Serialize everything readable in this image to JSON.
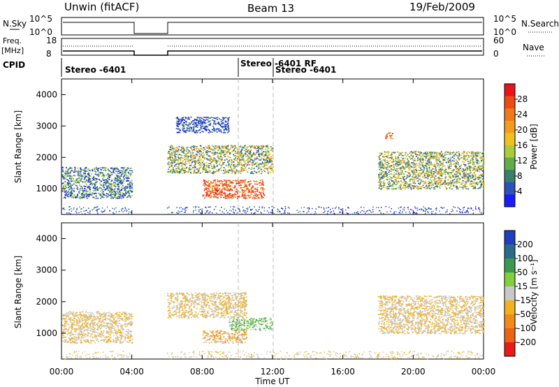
{
  "header": {
    "station": "Unwin (fitACF)",
    "beam": "Beam 13",
    "date": "19/Feb/2009"
  },
  "panels": {
    "nsky": {
      "label": "N.Sky",
      "left_ticks": [
        "10^5",
        "10^0"
      ],
      "right_ticks": [
        "10^5",
        "10^0"
      ],
      "right_label": "N.Search"
    },
    "freq": {
      "label": "Freq.",
      "unit": "[MHz]",
      "left_ticks": [
        "18",
        "8"
      ],
      "right_ticks": [
        "60",
        "0"
      ],
      "right_label": "Nave"
    },
    "cpid": {
      "label": "CPID",
      "segments": [
        "Stereo -6401",
        "Stereo -6401 RF",
        "Stereo -6401"
      ]
    }
  },
  "axes": {
    "ylabel": "Slant Range [km]",
    "yticks": [
      "1000",
      "2000",
      "3000",
      "4000"
    ],
    "xlabel": "Time UT",
    "xticks": [
      "00:00",
      "04:00",
      "08:00",
      "12:00",
      "16:00",
      "20:00",
      "00:00"
    ]
  },
  "colorbars": {
    "power": {
      "label": "Power [dB]",
      "ticks": [
        "4",
        "8",
        "12",
        "16",
        "20",
        "24",
        "28"
      ],
      "colors": [
        "#1a1aff",
        "#2b52b8",
        "#3a7f6a",
        "#62ad48",
        "#a8cc3a",
        "#f0c020",
        "#f59b1e",
        "#f07a1a",
        "#ee4a14",
        "#e8141a"
      ]
    },
    "velocity": {
      "label": "Velocity [m s⁻¹]",
      "ticks": [
        "200",
        "100",
        "50",
        "15",
        "-15",
        "-50",
        "-100",
        "-200"
      ],
      "colors": [
        "#1f3fbf",
        "#2b6a8a",
        "#3a9a50",
        "#7fd03a",
        "#c8c8c8",
        "#f2b21e",
        "#f08a18",
        "#ee6214",
        "#e81a1a"
      ]
    }
  },
  "chart_data": [
    {
      "type": "heatmap",
      "title": "Power",
      "xlabel": "Time UT",
      "ylabel": "Slant Range [km]",
      "xlim_hours": [
        0,
        24
      ],
      "ylim_km": [
        180,
        4500
      ],
      "regions": [
        {
          "t0": 0.0,
          "t1": 4.0,
          "r0": 700,
          "r1": 1700,
          "level": "low-mid"
        },
        {
          "t0": 6.0,
          "t1": 12.0,
          "r0": 1500,
          "r1": 2400,
          "level": "mid"
        },
        {
          "t0": 8.0,
          "t1": 11.5,
          "r0": 700,
          "r1": 1300,
          "level": "high"
        },
        {
          "t0": 6.5,
          "t1": 9.5,
          "r0": 2800,
          "r1": 3300,
          "level": "low"
        },
        {
          "t0": 18.0,
          "t1": 24.0,
          "r0": 1000,
          "r1": 2200,
          "level": "mid"
        },
        {
          "t0": 18.4,
          "t1": 18.8,
          "r0": 2600,
          "r1": 2800,
          "level": "high"
        }
      ]
    },
    {
      "type": "heatmap",
      "title": "Velocity",
      "xlabel": "Time UT",
      "ylabel": "Slant Range [km]",
      "xlim_hours": [
        0,
        24
      ],
      "ylim_km": [
        180,
        4500
      ],
      "regions": [
        {
          "t0": 0.0,
          "t1": 4.0,
          "r0": 700,
          "r1": 1700,
          "velocity": "near zero"
        },
        {
          "t0": 6.0,
          "t1": 10.5,
          "r0": 1500,
          "r1": 2300,
          "velocity": "near zero / slight negative"
        },
        {
          "t0": 8.0,
          "t1": 10.5,
          "r0": 700,
          "r1": 1100,
          "velocity": "-50 to -15"
        },
        {
          "t0": 9.5,
          "t1": 12.0,
          "r0": 1100,
          "r1": 1500,
          "velocity": "15 to 50"
        },
        {
          "t0": 18.0,
          "t1": 24.0,
          "r0": 1000,
          "r1": 2200,
          "velocity": "near zero"
        }
      ]
    }
  ]
}
